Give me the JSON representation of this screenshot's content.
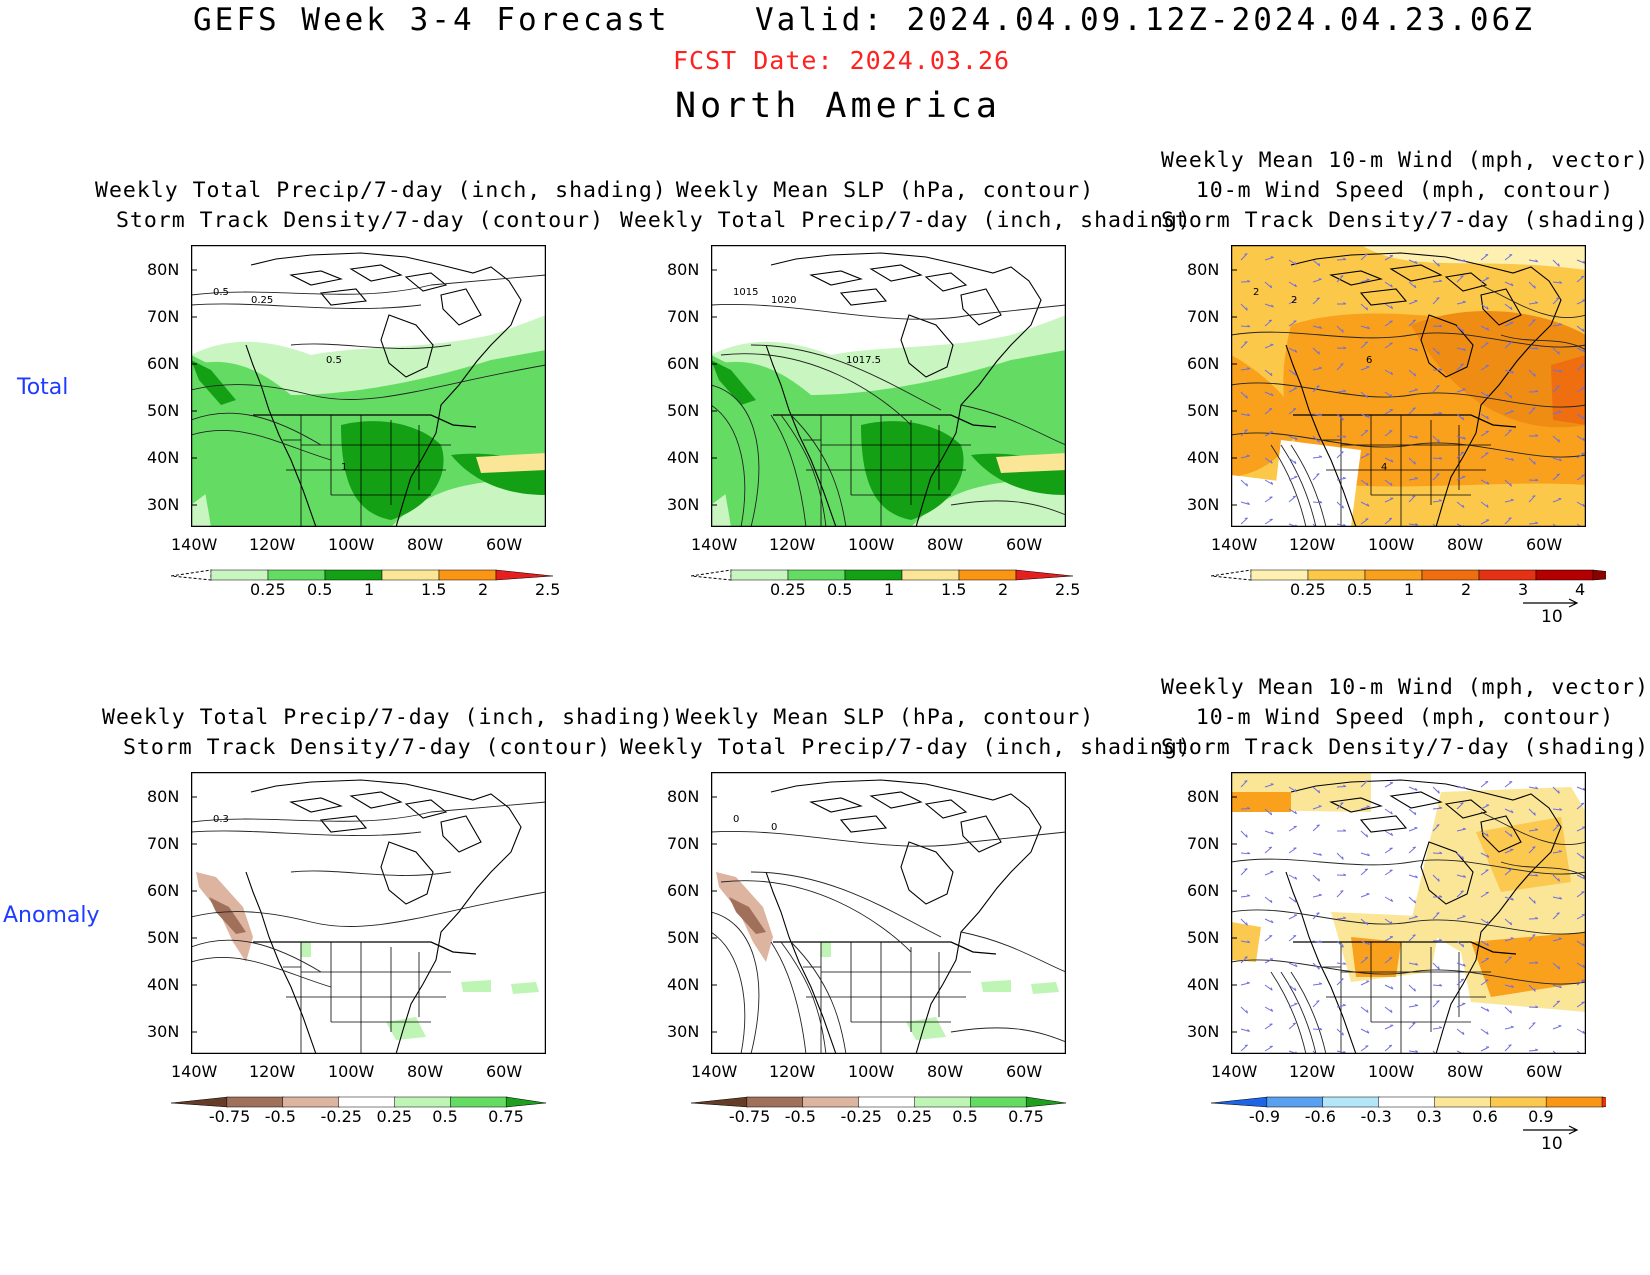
{
  "header": {
    "title": "GEFS Week 3-4 Forecast",
    "valid": "Valid: 2024.04.09.12Z-2024.04.23.06Z",
    "fcst_date": "FCST Date: 2024.03.26",
    "region": "North America"
  },
  "rows": [
    {
      "label": "Total"
    },
    {
      "label": "Anomaly"
    }
  ],
  "panel_titles": {
    "precip_track": [
      "Weekly Total Precip/7-day (inch, shading)",
      "Storm Track Density/7-day (contour)"
    ],
    "slp_precip": [
      "Weekly Mean SLP (hPa, contour)",
      "Weekly Total Precip/7-day (inch, shading)"
    ],
    "wind_track": [
      "Weekly Mean 10-m Wind (mph, vector)",
      "10-m Wind Speed (mph, contour)",
      "Storm Track Density/7-day (shading)"
    ]
  },
  "axes": {
    "lat_labels": [
      "80N",
      "70N",
      "60N",
      "50N",
      "40N",
      "30N"
    ],
    "lon_labels": [
      "140W",
      "120W",
      "100W",
      "80W",
      "60W"
    ]
  },
  "contour_labels": {
    "total_track": [
      "0.5",
      "0.25",
      "0.5",
      "1"
    ],
    "total_slp": [
      "1015",
      "1020",
      "1017.5"
    ],
    "total_wind": [
      "2",
      "2",
      "6",
      "4"
    ],
    "anom_track": [
      "0.3"
    ],
    "anom_slp": [
      "0",
      "0"
    ]
  },
  "colorbars": {
    "precip_total": {
      "labels": [
        "0.25",
        "0.5",
        "1",
        "1.5",
        "2",
        "2.5"
      ],
      "colors": [
        "#c8f5c0",
        "#64dc64",
        "#14a014",
        "#fae696",
        "#fa9614",
        "#e61e1e"
      ]
    },
    "track_total": {
      "labels": [
        "0.25",
        "0.5",
        "1",
        "2",
        "3",
        "4"
      ],
      "colors": [
        "#fdf0b0",
        "#fcc84a",
        "#f9a01c",
        "#ef6e0f",
        "#e63214",
        "#b40000",
        "#8c0000"
      ]
    },
    "precip_anom": {
      "labels": [
        "-0.75",
        "-0.5",
        "-0.25",
        "0.25",
        "0.5",
        "0.75"
      ],
      "colors_neg": [
        "#643c28",
        "#a0705a",
        "#dcb4a0"
      ],
      "colors_pos": [
        "#bef5b4",
        "#64dc64",
        "#1ea01e"
      ]
    },
    "track_anom": {
      "labels": [
        "-0.9",
        "-0.6",
        "-0.3",
        "0.3",
        "0.6",
        "0.9"
      ],
      "colors_neg": [
        "#1e64e6",
        "#5aa0f0",
        "#b4e6fa"
      ],
      "colors_pos": [
        "#fae696",
        "#fbc850",
        "#f99614",
        "#e63214"
      ]
    }
  },
  "vector_ref": {
    "value": "10"
  },
  "palette": {
    "accent_red": "#ff2020",
    "row_label_blue": "#1e3cff",
    "wind_vector": "#7070e0"
  }
}
